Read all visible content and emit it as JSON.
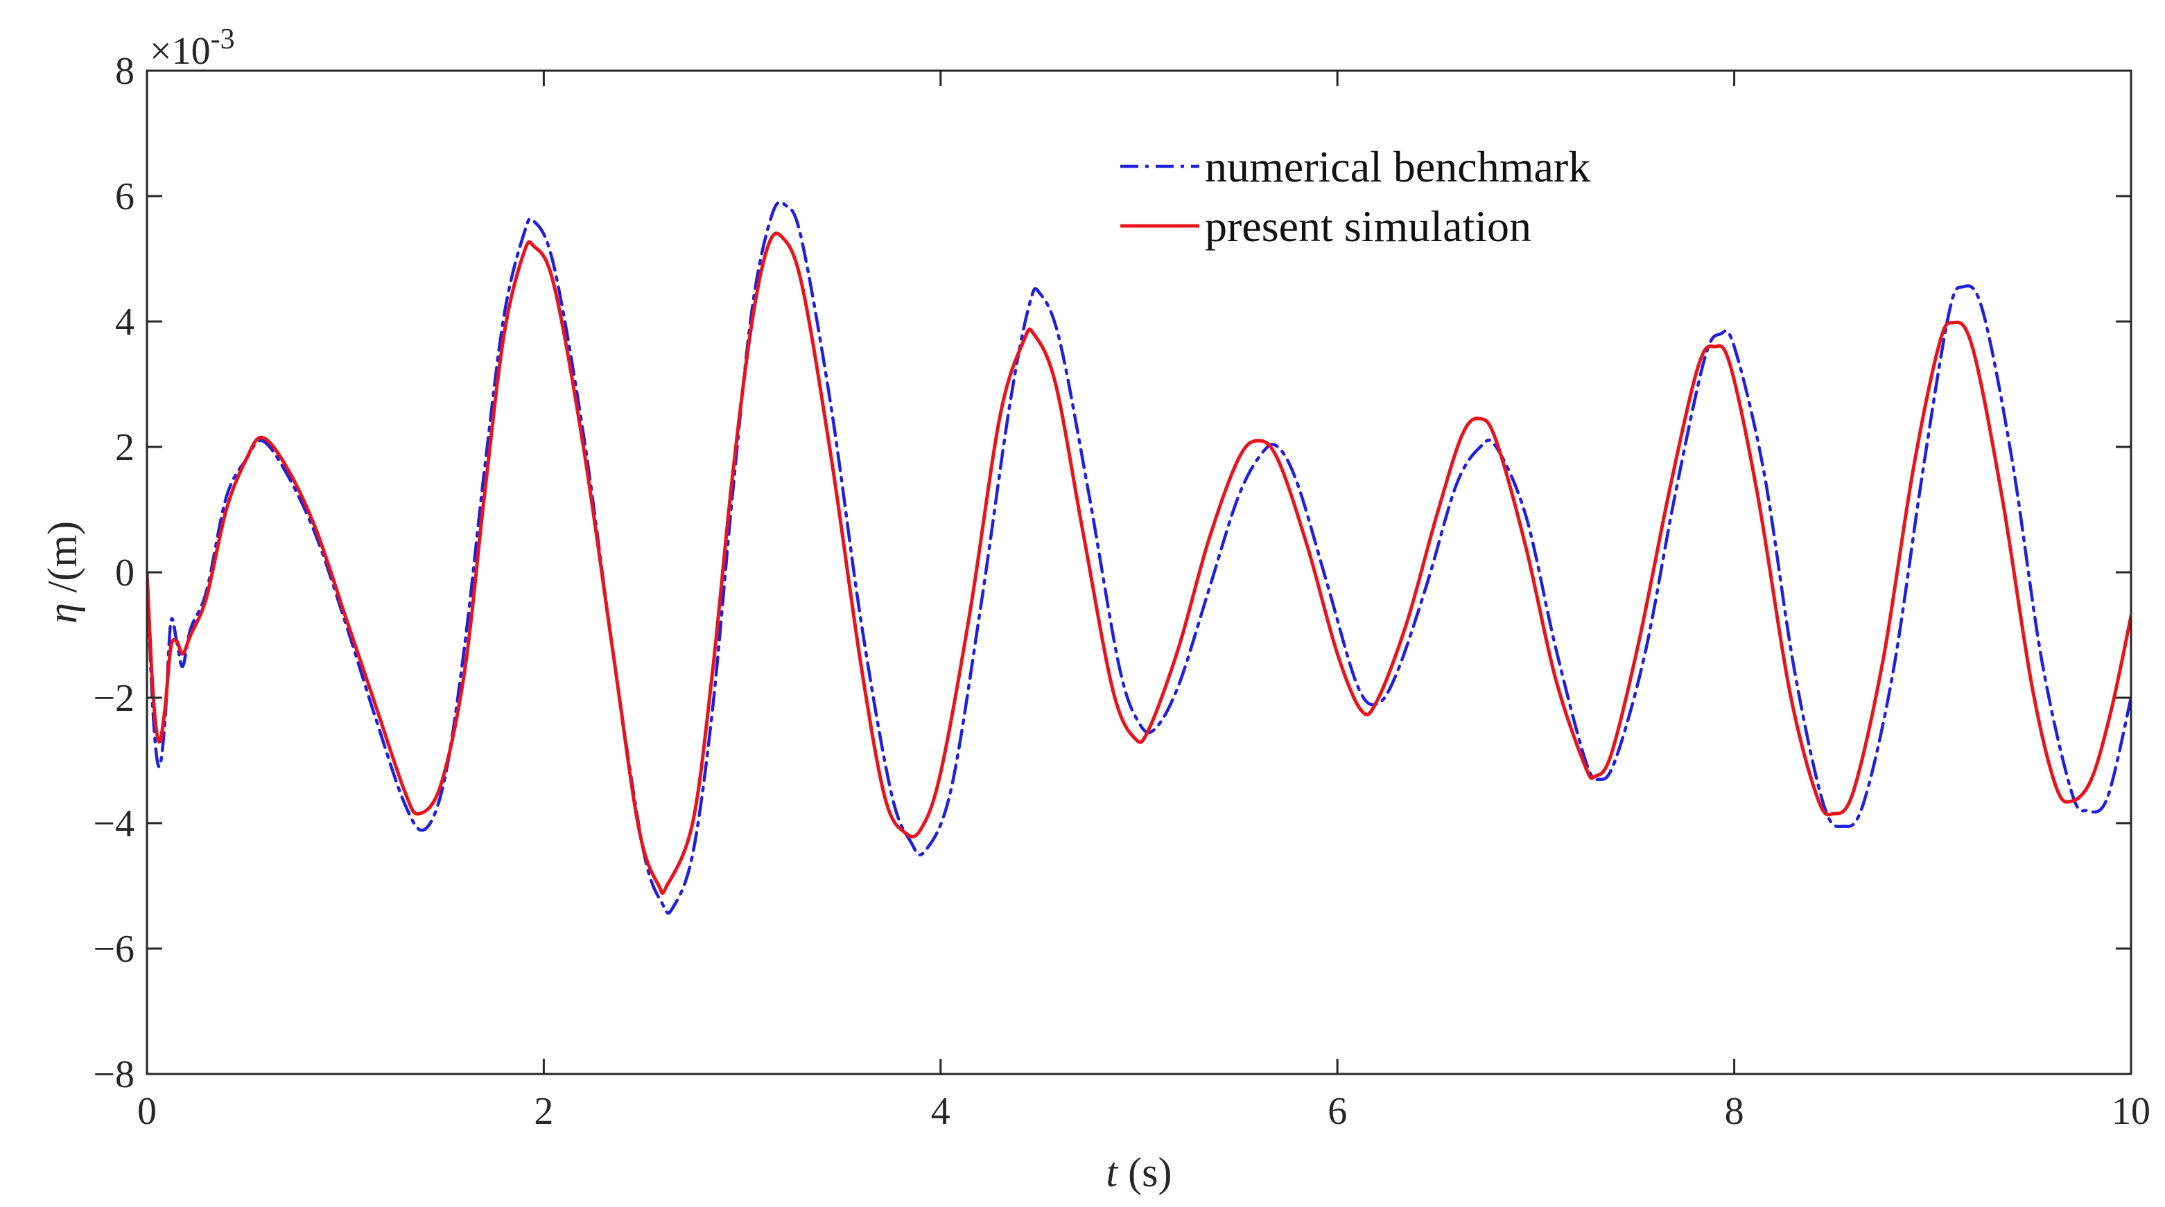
{
  "chart_data": {
    "type": "line",
    "title": "",
    "xlabel_var": "t",
    "xlabel_unit": " (s)",
    "ylabel_var": "η",
    "ylabel_unit": " /(m)",
    "y_multiplier_prefix": "×10",
    "y_multiplier_exponent": "-3",
    "xlim": [
      0,
      10
    ],
    "ylim": [
      -8,
      8
    ],
    "x_ticks": [
      0,
      2,
      4,
      6,
      8,
      10
    ],
    "y_ticks": [
      -8,
      -6,
      -4,
      -2,
      0,
      2,
      4,
      6,
      8
    ],
    "x_tick_labels": [
      "0",
      "2",
      "4",
      "6",
      "8",
      "10"
    ],
    "y_tick_labels": [
      "−8",
      "−6",
      "−4",
      "−2",
      "0",
      "2",
      "4",
      "6",
      "8"
    ],
    "grid": false,
    "legend_position": "top-right",
    "series": [
      {
        "name": "numerical benchmark",
        "color": "#1f1fe0",
        "style": "dash-dot",
        "points": [
          [
            0,
            0
          ],
          [
            0.03,
            -2.2
          ],
          [
            0.06,
            -3.1
          ],
          [
            0.09,
            -2.4
          ],
          [
            0.12,
            -0.8
          ],
          [
            0.15,
            -1.1
          ],
          [
            0.18,
            -1.5
          ],
          [
            0.22,
            -0.9
          ],
          [
            0.3,
            -0.3
          ],
          [
            0.4,
            1.2
          ],
          [
            0.5,
            1.8
          ],
          [
            0.58,
            2.1
          ],
          [
            0.7,
            1.6
          ],
          [
            0.85,
            0.6
          ],
          [
            1.0,
            -0.8
          ],
          [
            1.15,
            -2.3
          ],
          [
            1.3,
            -3.7
          ],
          [
            1.4,
            -4.1
          ],
          [
            1.5,
            -3.3
          ],
          [
            1.6,
            -1.2
          ],
          [
            1.7,
            1.6
          ],
          [
            1.8,
            4.1
          ],
          [
            1.9,
            5.4
          ],
          [
            1.95,
            5.6
          ],
          [
            2.05,
            4.9
          ],
          [
            2.2,
            2.2
          ],
          [
            2.35,
            -1.3
          ],
          [
            2.5,
            -4.4
          ],
          [
            2.6,
            -5.3
          ],
          [
            2.65,
            -5.35
          ],
          [
            2.75,
            -4.5
          ],
          [
            2.85,
            -2.2
          ],
          [
            2.95,
            1.2
          ],
          [
            3.05,
            4.2
          ],
          [
            3.15,
            5.7
          ],
          [
            3.22,
            5.85
          ],
          [
            3.3,
            5.3
          ],
          [
            3.45,
            2.6
          ],
          [
            3.6,
            -0.8
          ],
          [
            3.75,
            -3.5
          ],
          [
            3.85,
            -4.3
          ],
          [
            3.92,
            -4.45
          ],
          [
            4.05,
            -3.5
          ],
          [
            4.2,
            -0.6
          ],
          [
            4.35,
            2.7
          ],
          [
            4.45,
            4.3
          ],
          [
            4.5,
            4.45
          ],
          [
            4.6,
            3.7
          ],
          [
            4.75,
            1.2
          ],
          [
            4.9,
            -1.5
          ],
          [
            5.0,
            -2.4
          ],
          [
            5.08,
            -2.5
          ],
          [
            5.2,
            -1.8
          ],
          [
            5.35,
            -0.3
          ],
          [
            5.5,
            1.2
          ],
          [
            5.62,
            1.9
          ],
          [
            5.7,
            2.0
          ],
          [
            5.8,
            1.4
          ],
          [
            5.95,
            -0.2
          ],
          [
            6.1,
            -1.8
          ],
          [
            6.2,
            -2.1
          ],
          [
            6.3,
            -1.6
          ],
          [
            6.45,
            -0.2
          ],
          [
            6.6,
            1.4
          ],
          [
            6.72,
            2.0
          ],
          [
            6.8,
            2.0
          ],
          [
            6.95,
            0.9
          ],
          [
            7.1,
            -1.2
          ],
          [
            7.25,
            -3.0
          ],
          [
            7.32,
            -3.3
          ],
          [
            7.4,
            -3.0
          ],
          [
            7.55,
            -1.3
          ],
          [
            7.7,
            1.2
          ],
          [
            7.85,
            3.4
          ],
          [
            7.93,
            3.8
          ],
          [
            8.0,
            3.6
          ],
          [
            8.15,
            1.6
          ],
          [
            8.3,
            -1.5
          ],
          [
            8.45,
            -3.7
          ],
          [
            8.55,
            -4.05
          ],
          [
            8.65,
            -3.7
          ],
          [
            8.8,
            -1.6
          ],
          [
            8.95,
            1.6
          ],
          [
            9.08,
            4.1
          ],
          [
            9.15,
            4.55
          ],
          [
            9.25,
            4.2
          ],
          [
            9.4,
            1.8
          ],
          [
            9.55,
            -1.4
          ],
          [
            9.7,
            -3.5
          ],
          [
            9.78,
            -3.8
          ],
          [
            9.88,
            -3.6
          ],
          [
            10.0,
            -2.0
          ]
        ]
      },
      {
        "name": "present simulation",
        "color": "#e8141c",
        "style": "solid",
        "points": [
          [
            0,
            0
          ],
          [
            0.03,
            -1.9
          ],
          [
            0.06,
            -2.7
          ],
          [
            0.09,
            -2.2
          ],
          [
            0.12,
            -1.2
          ],
          [
            0.15,
            -1.1
          ],
          [
            0.18,
            -1.3
          ],
          [
            0.22,
            -1.0
          ],
          [
            0.3,
            -0.4
          ],
          [
            0.4,
            1.0
          ],
          [
            0.5,
            1.8
          ],
          [
            0.58,
            2.15
          ],
          [
            0.7,
            1.7
          ],
          [
            0.85,
            0.7
          ],
          [
            1.0,
            -0.7
          ],
          [
            1.15,
            -2.1
          ],
          [
            1.3,
            -3.5
          ],
          [
            1.37,
            -3.85
          ],
          [
            1.48,
            -3.4
          ],
          [
            1.6,
            -1.6
          ],
          [
            1.7,
            1.2
          ],
          [
            1.8,
            3.8
          ],
          [
            1.9,
            5.1
          ],
          [
            1.95,
            5.2
          ],
          [
            2.05,
            4.6
          ],
          [
            2.2,
            2.0
          ],
          [
            2.35,
            -1.3
          ],
          [
            2.48,
            -4.1
          ],
          [
            2.58,
            -5.0
          ],
          [
            2.62,
            -5.0
          ],
          [
            2.75,
            -4.0
          ],
          [
            2.85,
            -1.6
          ],
          [
            2.95,
            1.5
          ],
          [
            3.05,
            4.0
          ],
          [
            3.13,
            5.2
          ],
          [
            3.2,
            5.35
          ],
          [
            3.3,
            4.6
          ],
          [
            3.45,
            1.8
          ],
          [
            3.6,
            -1.5
          ],
          [
            3.72,
            -3.6
          ],
          [
            3.82,
            -4.15
          ],
          [
            3.9,
            -4.1
          ],
          [
            4.0,
            -3.2
          ],
          [
            4.15,
            -0.6
          ],
          [
            4.3,
            2.5
          ],
          [
            4.42,
            3.7
          ],
          [
            4.47,
            3.8
          ],
          [
            4.58,
            3.0
          ],
          [
            4.72,
            0.6
          ],
          [
            4.87,
            -1.9
          ],
          [
            4.98,
            -2.65
          ],
          [
            5.05,
            -2.5
          ],
          [
            5.2,
            -1.2
          ],
          [
            5.35,
            0.5
          ],
          [
            5.5,
            1.8
          ],
          [
            5.6,
            2.1
          ],
          [
            5.7,
            1.8
          ],
          [
            5.85,
            0.4
          ],
          [
            6.0,
            -1.3
          ],
          [
            6.12,
            -2.2
          ],
          [
            6.2,
            -2.05
          ],
          [
            6.35,
            -0.8
          ],
          [
            6.5,
            0.9
          ],
          [
            6.63,
            2.2
          ],
          [
            6.72,
            2.45
          ],
          [
            6.8,
            2.1
          ],
          [
            6.95,
            0.4
          ],
          [
            7.1,
            -1.7
          ],
          [
            7.25,
            -3.1
          ],
          [
            7.3,
            -3.25
          ],
          [
            7.38,
            -2.9
          ],
          [
            7.52,
            -1.1
          ],
          [
            7.68,
            1.4
          ],
          [
            7.82,
            3.3
          ],
          [
            7.9,
            3.6
          ],
          [
            7.98,
            3.3
          ],
          [
            8.12,
            1.2
          ],
          [
            8.28,
            -1.9
          ],
          [
            8.42,
            -3.6
          ],
          [
            8.5,
            -3.85
          ],
          [
            8.6,
            -3.5
          ],
          [
            8.75,
            -1.4
          ],
          [
            8.9,
            1.6
          ],
          [
            9.03,
            3.6
          ],
          [
            9.1,
            3.98
          ],
          [
            9.2,
            3.6
          ],
          [
            9.35,
            1.2
          ],
          [
            9.5,
            -1.8
          ],
          [
            9.62,
            -3.4
          ],
          [
            9.7,
            -3.65
          ],
          [
            9.8,
            -3.3
          ],
          [
            9.9,
            -2.2
          ],
          [
            10.0,
            -0.7
          ]
        ]
      }
    ]
  }
}
